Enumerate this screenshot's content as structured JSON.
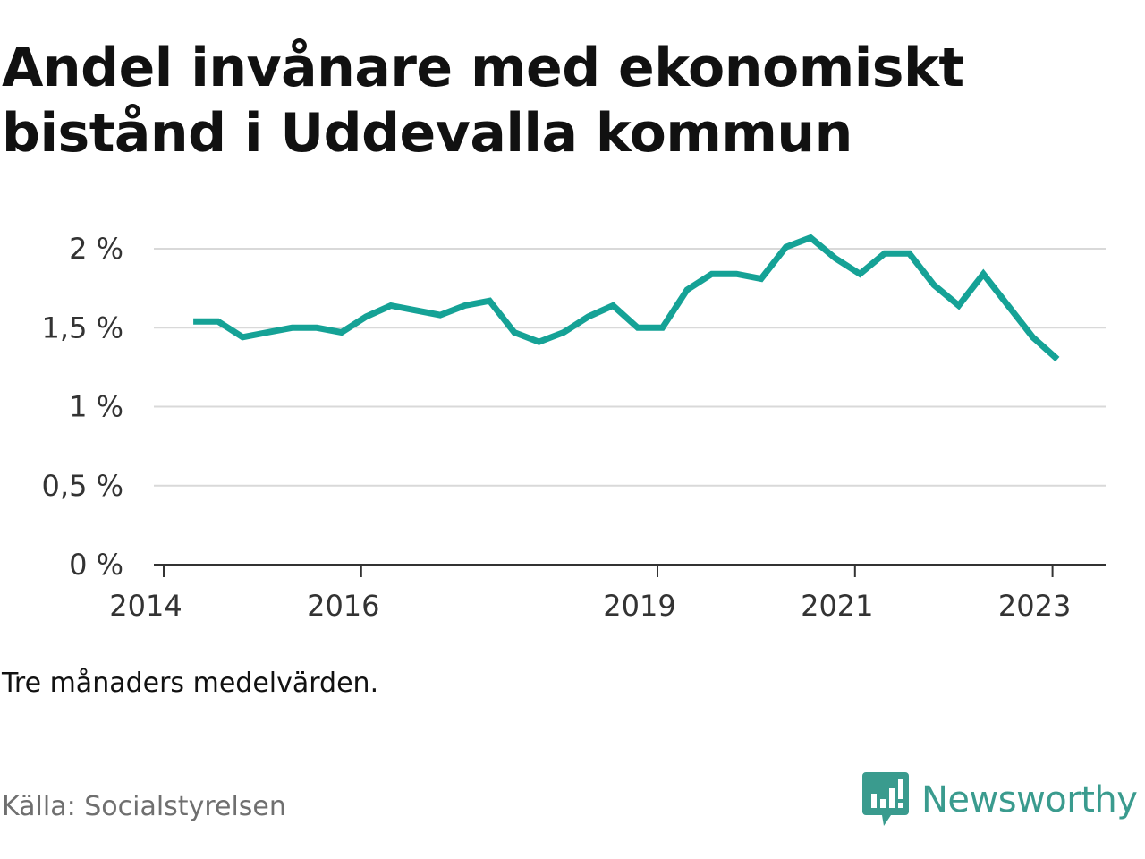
{
  "title_lines": [
    "Andel invånare med ekonomiskt",
    "bistånd i Uddevalla kommun"
  ],
  "note": "Tre månaders medelvärden.",
  "source": "Källa: Socialstyrelsen",
  "brand": {
    "name": "Newsworthy",
    "icon": "newsworthy-logo-icon",
    "color": "#3a9b8e"
  },
  "chart_data": {
    "type": "line",
    "title": "Andel invånare med ekonomiskt bistånd i Uddevalla kommun",
    "xlabel": "",
    "ylabel": "",
    "ylim": [
      0,
      2
    ],
    "yticks": [
      0,
      0.5,
      1,
      1.5,
      2
    ],
    "ytick_labels": [
      "0 %",
      "0,5 %",
      "1 %",
      "1,5 %",
      "2 %"
    ],
    "xlim": [
      2014.0,
      2024.0
    ],
    "xticks": [
      2014,
      2016,
      2019,
      2021,
      2023
    ],
    "xtick_labels": [
      "2014",
      "2016",
      "2019",
      "2021",
      "2023"
    ],
    "grid": true,
    "legend": "none",
    "series": [
      {
        "color": "#15a296",
        "x": [
          2014.3,
          2014.55,
          2014.8,
          2015.05,
          2015.3,
          2015.55,
          2015.8,
          2016.05,
          2016.3,
          2016.55,
          2016.8,
          2017.05,
          2017.3,
          2017.55,
          2017.8,
          2018.05,
          2018.3,
          2018.55,
          2018.8,
          2019.05,
          2019.3,
          2019.55,
          2019.8,
          2020.05,
          2020.3,
          2020.55,
          2020.8,
          2021.05,
          2021.3,
          2021.55,
          2021.8,
          2022.05,
          2022.3,
          2022.55,
          2022.8,
          2023.05
        ],
        "values": [
          1.54,
          1.54,
          1.44,
          1.47,
          1.5,
          1.5,
          1.47,
          1.57,
          1.64,
          1.61,
          1.58,
          1.64,
          1.67,
          1.47,
          1.41,
          1.47,
          1.57,
          1.64,
          1.5,
          1.5,
          1.74,
          1.84,
          1.84,
          1.81,
          2.01,
          2.07,
          1.94,
          1.84,
          1.97,
          1.97,
          1.77,
          1.64,
          1.84,
          1.64,
          1.44,
          1.3
        ]
      }
    ]
  }
}
